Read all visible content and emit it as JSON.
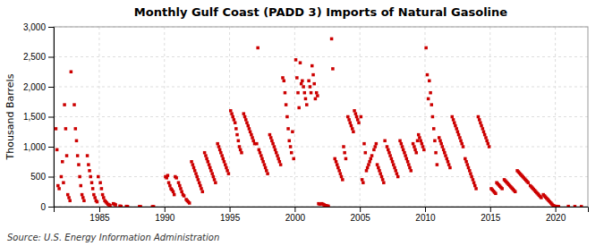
{
  "chart_data": {
    "type": "scatter",
    "title": "Monthly Gulf Coast (PADD 3) Imports of Natural Gasoline",
    "y_label": "Thousand Barrels",
    "annotations": [
      "Source: U.S. Energy Information Administration"
    ],
    "color": "#cc0000",
    "marker": "square",
    "grid": true,
    "xlim": [
      1981.5,
      2022.5
    ],
    "ylim": [
      0,
      3000
    ],
    "xticks": [
      1985,
      1990,
      1995,
      2000,
      2005,
      2010,
      2015,
      2020
    ],
    "yticks": [
      0,
      500,
      {
        "value": 1000,
        "label": "1,000"
      },
      {
        "value": 1500,
        "label": "1,500"
      },
      {
        "value": 2000,
        "label": "2,000"
      },
      {
        "value": 2500,
        "label": "2,500"
      },
      {
        "value": 3000,
        "label": "3,000"
      }
    ],
    "x": [
      1981.67,
      1981.75,
      1981.83,
      1981.92,
      1982.08,
      1982.17,
      1982.25,
      1982.33,
      1982.42,
      1982.5,
      1982.58,
      1982.67,
      1982.75,
      1982.83,
      1983.08,
      1983.17,
      1983.25,
      1983.33,
      1983.42,
      1983.5,
      1983.58,
      1983.67,
      1983.75,
      1983.83,
      1984.08,
      1984.17,
      1984.25,
      1984.33,
      1984.42,
      1984.5,
      1984.58,
      1984.67,
      1984.75,
      1984.83,
      1984.92,
      1985.08,
      1985.17,
      1985.25,
      1985.33,
      1985.42,
      1985.5,
      1985.58,
      1985.67,
      1985.75,
      1985.83,
      1986.08,
      1986.17,
      1986.25,
      1986.58,
      1986.67,
      1987.08,
      1987.17,
      1988.08,
      1988.17,
      1989.08,
      1989.17,
      1990.08,
      1990.17,
      1990.25,
      1990.33,
      1990.42,
      1990.5,
      1990.58,
      1990.67,
      1990.75,
      1990.83,
      1990.92,
      1991.08,
      1991.17,
      1991.25,
      1991.33,
      1991.42,
      1991.5,
      1991.67,
      1991.75,
      1991.83,
      1991.92,
      1992.08,
      1992.17,
      1992.25,
      1992.33,
      1992.42,
      1992.5,
      1992.58,
      1992.67,
      1992.75,
      1992.83,
      1992.92,
      1993.08,
      1993.17,
      1993.25,
      1993.33,
      1993.42,
      1993.5,
      1993.58,
      1993.67,
      1993.75,
      1993.83,
      1993.92,
      1994.08,
      1994.17,
      1994.25,
      1994.33,
      1994.42,
      1994.5,
      1994.58,
      1994.67,
      1994.75,
      1994.83,
      1994.92,
      1995.08,
      1995.17,
      1995.25,
      1995.33,
      1995.42,
      1995.5,
      1995.58,
      1995.67,
      1995.75,
      1995.83,
      1995.92,
      1996.08,
      1996.17,
      1996.25,
      1996.33,
      1996.42,
      1996.5,
      1996.58,
      1996.67,
      1996.75,
      1996.83,
      1996.92,
      1997.08,
      1997.17,
      1997.25,
      1997.33,
      1997.42,
      1997.5,
      1997.58,
      1997.67,
      1997.75,
      1997.83,
      1997.92,
      1998.08,
      1998.17,
      1998.25,
      1998.33,
      1998.42,
      1998.5,
      1998.58,
      1998.67,
      1998.75,
      1998.83,
      1998.92,
      1999.08,
      1999.17,
      1999.25,
      1999.33,
      1999.42,
      1999.5,
      1999.58,
      1999.67,
      1999.75,
      1999.83,
      1999.92,
      2000.08,
      2000.17,
      2000.25,
      2000.33,
      2000.42,
      2000.5,
      2000.58,
      2000.67,
      2000.75,
      2000.83,
      2000.92,
      2001.08,
      2001.17,
      2001.25,
      2001.33,
      2001.42,
      2001.5,
      2001.58,
      2001.67,
      2001.75,
      2001.83,
      2001.92,
      2002.08,
      2002.17,
      2002.25,
      2002.33,
      2002.42,
      2002.5,
      2002.58,
      2002.83,
      2002.92,
      2003.08,
      2003.17,
      2003.25,
      2003.33,
      2003.42,
      2003.5,
      2003.58,
      2003.67,
      2003.75,
      2003.83,
      2003.92,
      2004.08,
      2004.17,
      2004.25,
      2004.33,
      2004.42,
      2004.5,
      2004.58,
      2004.67,
      2004.75,
      2004.83,
      2004.92,
      2005.08,
      2005.17,
      2005.25,
      2005.33,
      2005.42,
      2005.5,
      2005.58,
      2005.67,
      2005.75,
      2005.83,
      2005.92,
      2006.08,
      2006.17,
      2006.25,
      2006.33,
      2006.42,
      2006.5,
      2006.58,
      2006.67,
      2006.75,
      2006.83,
      2006.92,
      2007.08,
      2007.17,
      2007.25,
      2007.33,
      2007.42,
      2007.5,
      2007.58,
      2007.67,
      2007.75,
      2007.83,
      2007.92,
      2008.08,
      2008.17,
      2008.25,
      2008.33,
      2008.42,
      2008.5,
      2008.58,
      2008.67,
      2008.75,
      2008.83,
      2008.92,
      2009.08,
      2009.17,
      2009.25,
      2009.33,
      2009.42,
      2009.5,
      2009.58,
      2009.67,
      2009.75,
      2009.83,
      2009.92,
      2010.08,
      2010.17,
      2010.25,
      2010.33,
      2010.42,
      2010.5,
      2010.58,
      2010.67,
      2010.75,
      2010.83,
      2010.92,
      2011.08,
      2011.17,
      2011.25,
      2011.33,
      2011.42,
      2011.5,
      2011.58,
      2011.67,
      2011.75,
      2011.83,
      2011.92,
      2012.08,
      2012.17,
      2012.25,
      2012.33,
      2012.42,
      2012.5,
      2012.58,
      2012.67,
      2012.75,
      2012.83,
      2012.92,
      2013.08,
      2013.17,
      2013.25,
      2013.33,
      2013.42,
      2013.5,
      2013.58,
      2013.67,
      2013.75,
      2013.83,
      2013.92,
      2014.08,
      2014.17,
      2014.25,
      2014.33,
      2014.42,
      2014.5,
      2014.58,
      2014.67,
      2014.75,
      2014.83,
      2014.92,
      2015.08,
      2015.17,
      2015.25,
      2015.33,
      2015.42,
      2015.5,
      2015.58,
      2015.67,
      2015.75,
      2015.83,
      2015.92,
      2016.08,
      2016.17,
      2016.25,
      2016.33,
      2016.42,
      2016.5,
      2016.58,
      2016.67,
      2016.75,
      2016.83,
      2016.92,
      2017.08,
      2017.17,
      2017.25,
      2017.33,
      2017.42,
      2017.5,
      2017.58,
      2017.67,
      2017.75,
      2017.83,
      2017.92,
      2018.08,
      2018.17,
      2018.25,
      2018.33,
      2018.42,
      2018.5,
      2018.58,
      2018.67,
      2018.75,
      2018.83,
      2018.92,
      2019.08,
      2019.17,
      2019.25,
      2019.33,
      2019.42,
      2019.5,
      2019.58,
      2019.67,
      2019.75,
      2019.83,
      2019.92,
      2020.08,
      2020.17,
      2020.25,
      2021,
      2021.5,
      2022
    ],
    "values": [
      1300,
      950,
      350,
      300,
      500,
      750,
      400,
      1700,
      1300,
      850,
      200,
      150,
      100,
      2250,
      1700,
      1300,
      1100,
      850,
      700,
      500,
      350,
      200,
      150,
      100,
      850,
      700,
      600,
      500,
      400,
      300,
      200,
      150,
      100,
      80,
      500,
      400,
      300,
      200,
      150,
      100,
      80,
      60,
      40,
      30,
      20,
      50,
      40,
      30,
      10,
      5,
      5,
      3,
      2,
      1,
      1,
      1,
      500,
      480,
      520,
      400,
      350,
      300,
      280,
      250,
      200,
      500,
      480,
      400,
      350,
      300,
      250,
      200,
      180,
      120,
      100,
      80,
      60,
      750,
      700,
      650,
      600,
      550,
      500,
      450,
      400,
      350,
      300,
      250,
      900,
      850,
      800,
      750,
      700,
      650,
      600,
      550,
      500,
      450,
      400,
      1050,
      1000,
      950,
      900,
      850,
      800,
      750,
      700,
      650,
      600,
      550,
      1600,
      1550,
      1500,
      1450,
      1400,
      1300,
      1200,
      1100,
      1000,
      950,
      900,
      1550,
      1500,
      1450,
      1400,
      1350,
      1300,
      1250,
      1200,
      1150,
      1100,
      1050,
      1050,
      2650,
      950,
      900,
      850,
      800,
      750,
      700,
      650,
      600,
      550,
      1200,
      1150,
      1100,
      1050,
      1000,
      950,
      900,
      850,
      800,
      750,
      700,
      2150,
      2100,
      1900,
      1700,
      1500,
      1300,
      1100,
      1000,
      900,
      1250,
      800,
      2450,
      2150,
      1900,
      1650,
      2400,
      2050,
      2100,
      2000,
      1900,
      1800,
      1700,
      2100,
      2000,
      1900,
      2350,
      2200,
      2050,
      1800,
      1900,
      1850,
      50,
      40,
      50,
      40,
      30,
      20,
      15,
      10,
      8,
      2800,
      2300,
      800,
      750,
      700,
      650,
      600,
      550,
      500,
      450,
      1000,
      900,
      800,
      1500,
      1450,
      1400,
      1350,
      1300,
      1250,
      1600,
      1550,
      1500,
      1450,
      1400,
      1500,
      450,
      400,
      1050,
      900,
      600,
      650,
      700,
      750,
      800,
      850,
      950,
      1000,
      1050,
      700,
      650,
      600,
      550,
      500,
      450,
      400,
      1100,
      1000,
      950,
      900,
      850,
      800,
      750,
      700,
      650,
      600,
      550,
      500,
      1100,
      1050,
      1000,
      950,
      900,
      850,
      800,
      750,
      700,
      650,
      600,
      1050,
      1000,
      950,
      900,
      1100,
      1200,
      1150,
      1100,
      1050,
      1000,
      950,
      2650,
      2200,
      1800,
      2100,
      1900,
      1700,
      1500,
      1300,
      1100,
      900,
      700,
      1150,
      1100,
      1050,
      1000,
      950,
      900,
      850,
      800,
      750,
      700,
      650,
      1500,
      1450,
      1400,
      1350,
      1300,
      1250,
      1200,
      1150,
      1100,
      1050,
      1000,
      800,
      750,
      700,
      650,
      600,
      550,
      500,
      450,
      400,
      350,
      300,
      1500,
      1450,
      1400,
      1350,
      1300,
      1250,
      1200,
      1150,
      1100,
      1050,
      1000,
      300,
      280,
      260,
      240,
      220,
      400,
      380,
      360,
      340,
      320,
      300,
      450,
      430,
      410,
      390,
      370,
      350,
      330,
      310,
      290,
      270,
      250,
      600,
      580,
      560,
      540,
      520,
      500,
      480,
      460,
      440,
      420,
      400,
      350,
      330,
      310,
      290,
      270,
      250,
      230,
      210,
      190,
      170,
      150,
      200,
      180,
      160,
      140,
      120,
      100,
      80,
      60,
      40,
      20,
      10,
      5,
      3,
      2,
      5,
      3,
      2
    ]
  }
}
